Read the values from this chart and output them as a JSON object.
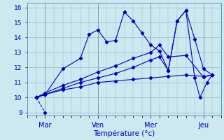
{
  "background_color": "#cce8f0",
  "grid_color": "#99bbcc",
  "line_color": "#0000bb",
  "xlabel": "Température (°c)",
  "xlabel_color": "#0000bb",
  "ylabel_color": "#0000bb",
  "xlim": [
    -0.5,
    10.5
  ],
  "ylim": [
    8.8,
    16.3
  ],
  "yticks": [
    9,
    10,
    11,
    12,
    13,
    14,
    15,
    16
  ],
  "xtick_positions": [
    0.5,
    3.5,
    6.5,
    9.5
  ],
  "xtick_labels": [
    "Mar",
    "Ven",
    "Mer",
    "Jeu"
  ],
  "lines": [
    [
      0,
      10,
      0.5,
      9.0
    ],
    [
      0,
      10,
      0.5,
      10.2,
      1.5,
      11.9,
      2.5,
      12.6,
      3.0,
      14.2,
      3.5,
      14.5,
      4.0,
      13.7,
      4.5,
      13.8,
      5.0,
      15.7,
      5.5,
      15.1,
      6.0,
      14.3,
      6.5,
      13.5,
      7.0,
      13.1,
      7.5,
      11.8,
      8.0,
      15.1,
      8.5,
      15.8,
      9.0,
      13.9,
      9.5,
      11.9,
      10,
      11.5
    ],
    [
      0,
      10,
      0.5,
      10.2,
      1.5,
      10.5,
      2.5,
      10.7,
      3.5,
      11.0,
      4.5,
      11.1,
      5.5,
      11.2,
      6.5,
      11.3,
      7.5,
      11.4,
      8.5,
      11.5,
      9.5,
      11.4,
      10,
      11.5
    ],
    [
      0,
      10,
      0.5,
      10.2,
      1.5,
      10.6,
      2.5,
      11.0,
      3.5,
      11.3,
      4.5,
      11.6,
      5.5,
      12.0,
      6.5,
      12.5,
      7.0,
      12.7,
      7.5,
      11.8,
      8.0,
      15.1,
      8.5,
      15.8,
      9.0,
      11.3,
      9.3,
      10.0,
      9.7,
      11.0,
      10,
      11.5
    ],
    [
      0,
      10,
      0.5,
      10.3,
      1.5,
      10.8,
      2.5,
      11.2,
      3.5,
      11.7,
      4.5,
      12.1,
      5.5,
      12.6,
      6.5,
      13.0,
      7.0,
      13.5,
      7.5,
      12.7,
      8.5,
      12.8,
      9.5,
      11.35,
      10,
      11.5
    ]
  ]
}
